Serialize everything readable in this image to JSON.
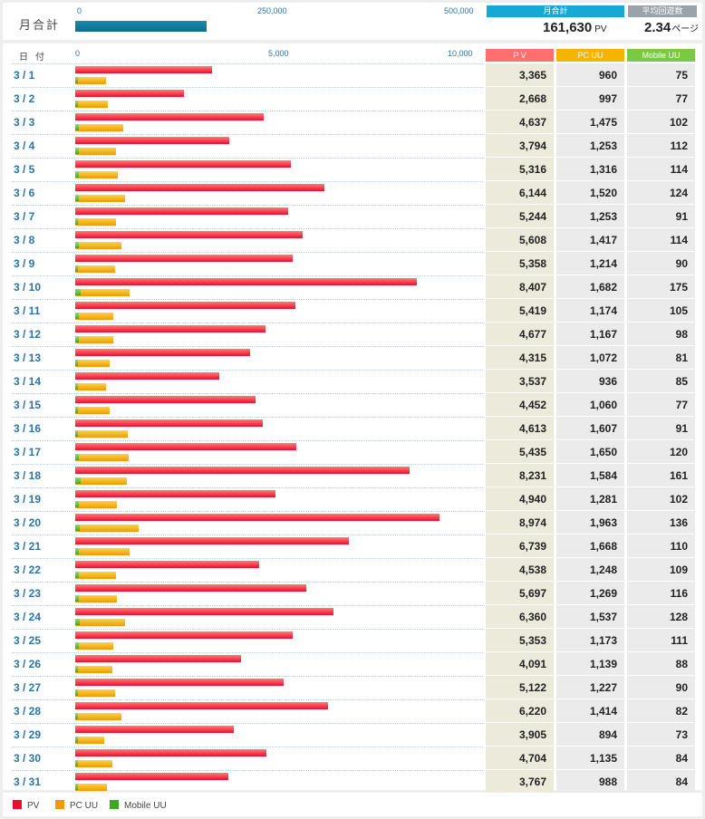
{
  "colors": {
    "pv": "#e8102c",
    "pc_uu": "#f09a00",
    "mobile_uu": "#3da81e",
    "month_bar": "#0e6c90",
    "head_monthly": "#15a9d3",
    "head_avg": "#9aa3ab",
    "head_pv": "#ff6f6f",
    "head_pc": "#f5b400",
    "head_mobile": "#7ac943"
  },
  "monthly": {
    "label": "月合計",
    "axis_ticks": [
      "0",
      "250,000",
      "500,000"
    ],
    "axis_max": 500000,
    "total_pv": 161630,
    "summary_head": "月合計",
    "total_pv_text": "161,630",
    "pv_unit": "PV",
    "avg_head": "平均回遊数",
    "avg_value": "2.34",
    "avg_unit": "ページ"
  },
  "table": {
    "date_header": "日付",
    "col_pv": "P V",
    "col_pc": "PC UU",
    "col_mobile": "Mobile UU",
    "axis_ticks": [
      "0",
      "5,000",
      "10,000"
    ],
    "axis_max": 10000
  },
  "legend": {
    "pv": "PV",
    "pc_uu": "PC UU",
    "mobile_uu": "Mobile UU"
  },
  "chart_data": {
    "type": "bar",
    "categories": [
      "3 / 1",
      "3 / 2",
      "3 / 3",
      "3 / 4",
      "3 / 5",
      "3 / 6",
      "3 / 7",
      "3 / 8",
      "3 / 9",
      "3 / 10",
      "3 / 11",
      "3 / 12",
      "3 / 13",
      "3 / 14",
      "3 / 15",
      "3 / 16",
      "3 / 17",
      "3 / 18",
      "3 / 19",
      "3 / 20",
      "3 / 21",
      "3 / 22",
      "3 / 23",
      "3 / 24",
      "3 / 25",
      "3 / 26",
      "3 / 27",
      "3 / 28",
      "3 / 29",
      "3 / 30",
      "3 / 31"
    ],
    "series": [
      {
        "name": "PV",
        "values": [
          3365,
          2668,
          4637,
          3794,
          5316,
          6144,
          5244,
          5608,
          5358,
          8407,
          5419,
          4677,
          4315,
          3537,
          4452,
          4613,
          5435,
          8231,
          4940,
          8974,
          6739,
          4538,
          5697,
          6360,
          5353,
          4091,
          5122,
          6220,
          3905,
          4704,
          3767
        ]
      },
      {
        "name": "PC UU",
        "values": [
          960,
          997,
          1475,
          1253,
          1316,
          1520,
          1253,
          1417,
          1214,
          1682,
          1174,
          1167,
          1072,
          936,
          1060,
          1607,
          1650,
          1584,
          1281,
          1963,
          1668,
          1248,
          1269,
          1537,
          1173,
          1139,
          1227,
          1414,
          894,
          1135,
          988
        ]
      },
      {
        "name": "Mobile UU",
        "values": [
          75,
          77,
          102,
          112,
          114,
          124,
          91,
          114,
          90,
          175,
          105,
          98,
          81,
          85,
          77,
          91,
          120,
          161,
          102,
          136,
          110,
          109,
          116,
          128,
          111,
          88,
          90,
          82,
          73,
          84,
          84
        ]
      }
    ],
    "xlim": [
      0,
      10000
    ],
    "orientation": "horizontal",
    "legend": "bottom-left"
  }
}
